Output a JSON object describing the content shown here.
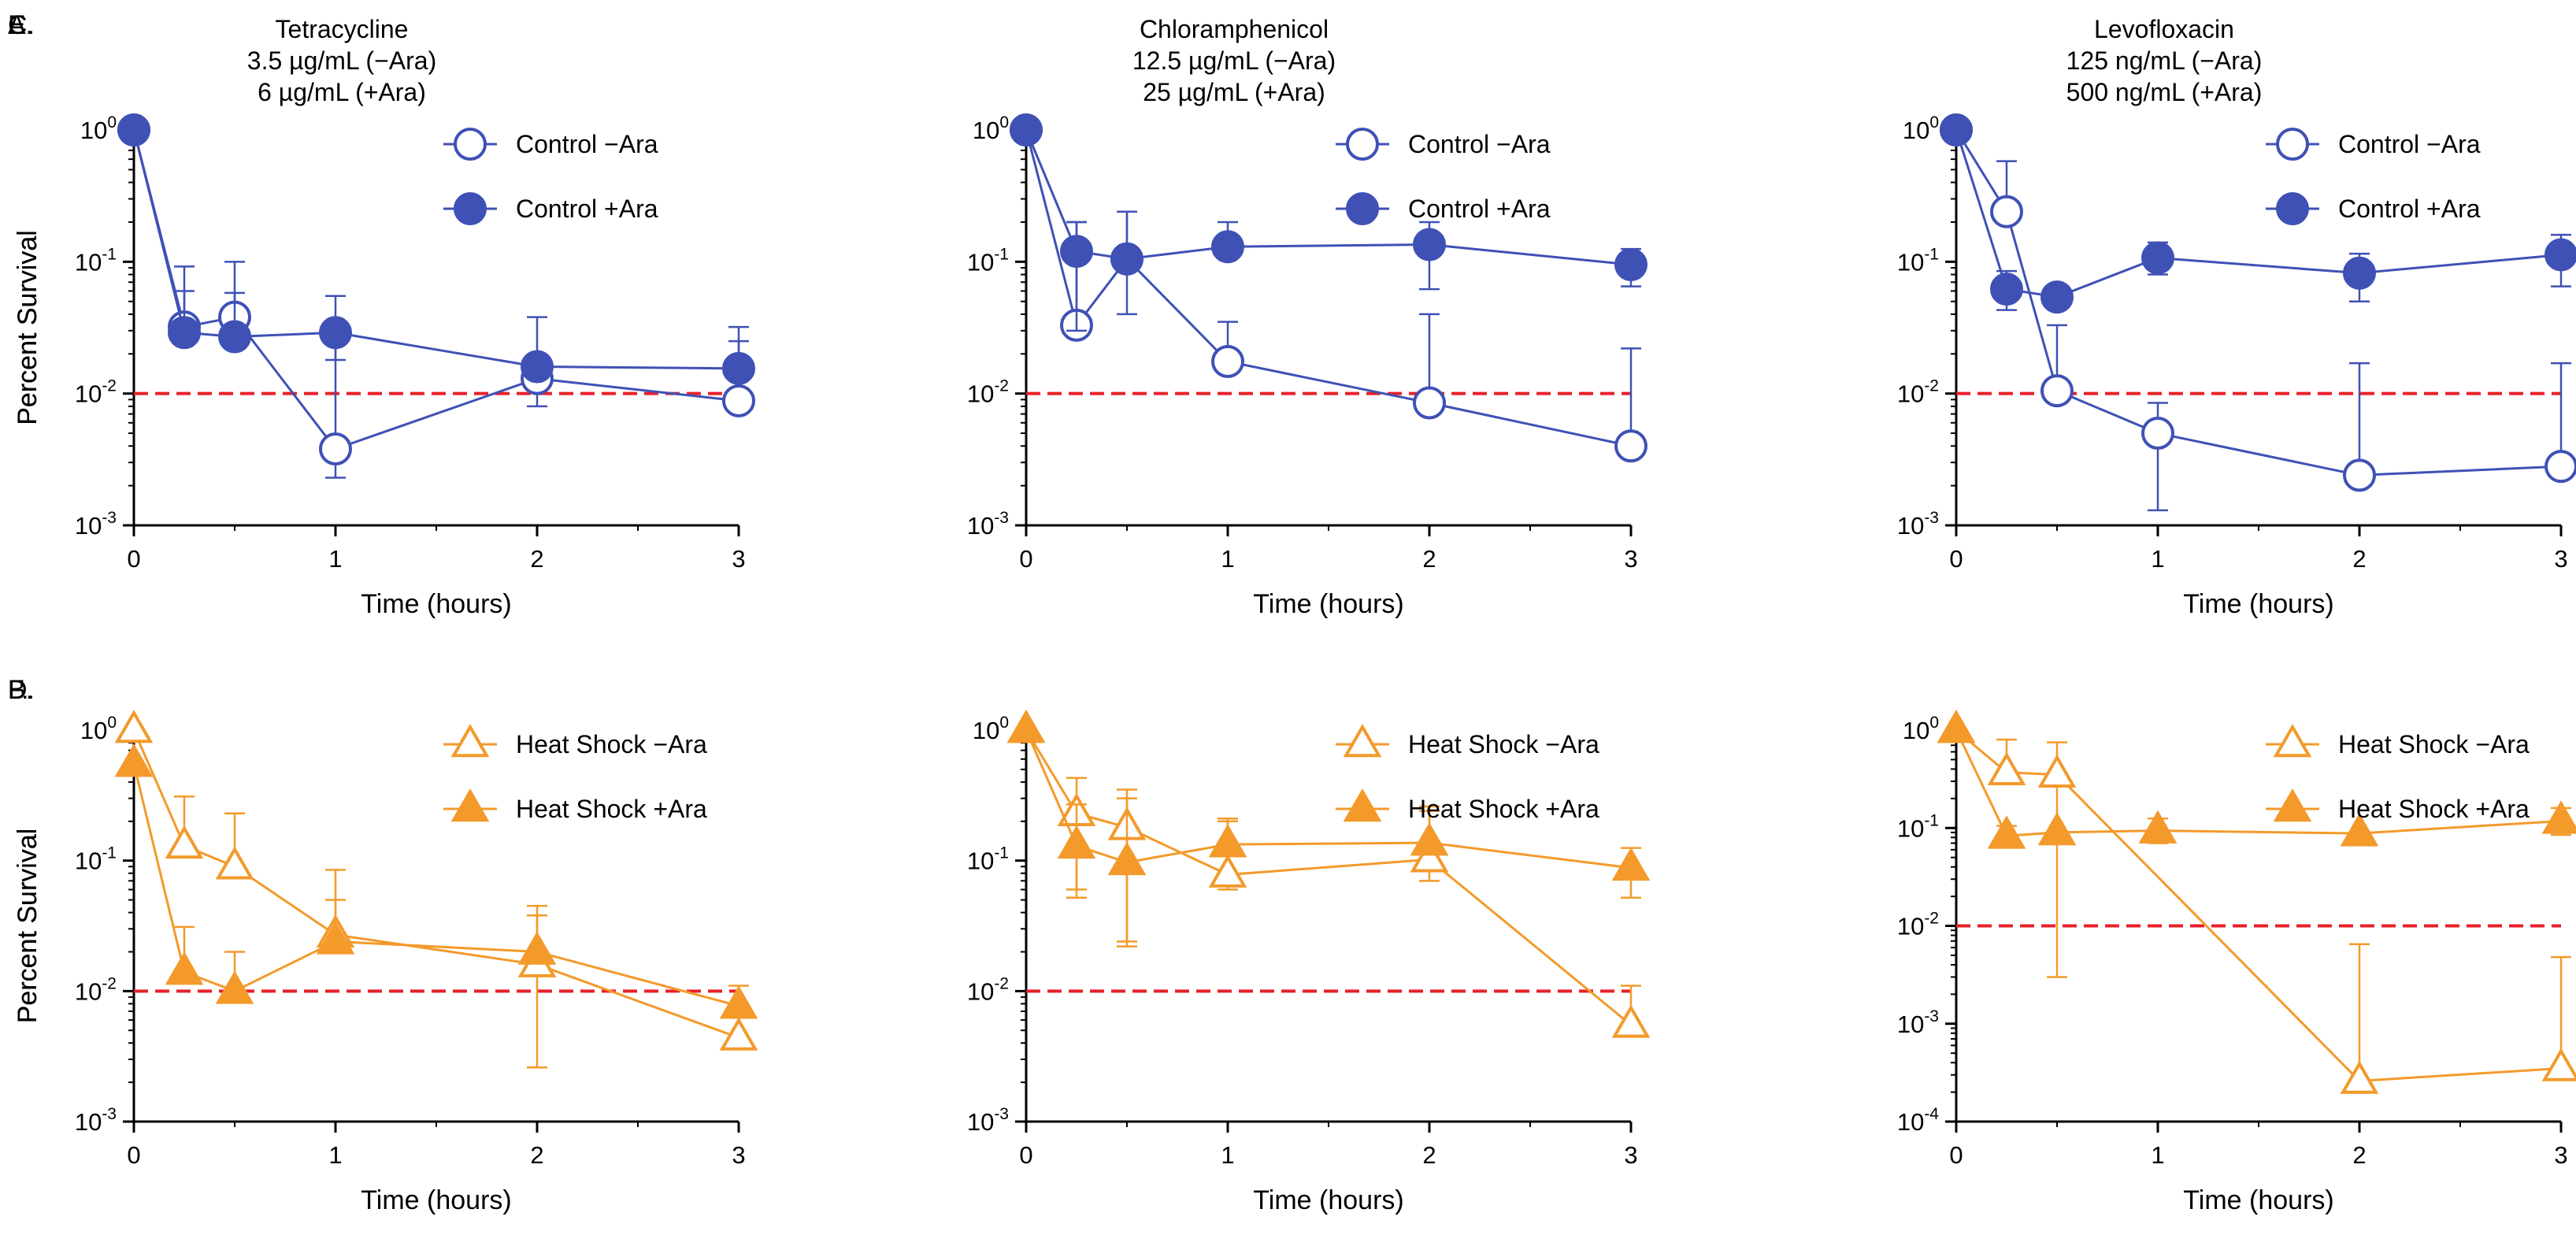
{
  "colors": {
    "control": "#3f51b5",
    "heat": "#f39a2b",
    "threshold": "#e8202a"
  },
  "chart_data": [
    {
      "panel": "A",
      "label": "A.",
      "type": "line",
      "title_lines": [
        "Tetracycline",
        "3.5 µg/mL (−Ara)",
        "6 µg/mL (+Ara)"
      ],
      "xlabel": "Time (hours)",
      "ylabel": "Percent Survival",
      "x_ticks": [
        "0",
        "1",
        "2",
        "3"
      ],
      "xlim": [
        0,
        3
      ],
      "ylim_log10": [
        -3,
        0
      ],
      "y_ticks": [
        {
          "base": "10",
          "exp": "0"
        },
        {
          "base": "10",
          "exp": "-1"
        },
        {
          "base": "10",
          "exp": "-2"
        },
        {
          "base": "10",
          "exp": "-3"
        }
      ],
      "threshold": 0.01,
      "legend_position": "top-right",
      "series": [
        {
          "name": "Control −Ara",
          "marker": "circle",
          "filled": false,
          "color_key": "control",
          "x": [
            0,
            0.25,
            0.5,
            1,
            2,
            3
          ],
          "y": [
            1.0,
            0.032,
            0.038,
            0.0038,
            0.013,
            0.0088
          ],
          "err_hi": [
            null,
            0.092,
            0.1,
            0.055,
            0.038,
            0.032
          ],
          "err_lo": [
            null,
            null,
            null,
            0.0023,
            0.008,
            null
          ]
        },
        {
          "name": "Control +Ara",
          "marker": "circle",
          "filled": true,
          "color_key": "control",
          "x": [
            0,
            0.25,
            0.5,
            1,
            2,
            3
          ],
          "y": [
            1.0,
            0.029,
            0.027,
            0.029,
            0.016,
            0.0155
          ],
          "err_hi": [
            null,
            0.06,
            0.058,
            null,
            0.018,
            0.025
          ],
          "err_lo": [
            null,
            null,
            null,
            0.018,
            null,
            null
          ]
        }
      ]
    },
    {
      "panel": "C",
      "label": "C.",
      "type": "line",
      "title_lines": [
        "Chloramphenicol",
        "12.5 µg/mL (−Ara)",
        "25 µg/mL (+Ara)"
      ],
      "xlabel": "Time (hours)",
      "ylabel": "Percent Survival",
      "x_ticks": [
        "0",
        "1",
        "2",
        "3"
      ],
      "xlim": [
        0,
        3
      ],
      "ylim_log10": [
        -3,
        0
      ],
      "y_ticks": [
        {
          "base": "10",
          "exp": "0"
        },
        {
          "base": "10",
          "exp": "-1"
        },
        {
          "base": "10",
          "exp": "-2"
        },
        {
          "base": "10",
          "exp": "-3"
        }
      ],
      "threshold": 0.01,
      "legend_position": "top-right",
      "series": [
        {
          "name": "Control −Ara",
          "marker": "circle",
          "filled": false,
          "color_key": "control",
          "x": [
            0,
            0.25,
            0.5,
            1,
            2,
            3
          ],
          "y": [
            1.0,
            0.033,
            0.105,
            0.0175,
            0.0085,
            0.004
          ],
          "err_hi": [
            null,
            0.2,
            0.24,
            0.035,
            0.04,
            0.022
          ],
          "err_lo": [
            null,
            null,
            null,
            null,
            null,
            null
          ]
        },
        {
          "name": "Control +Ara",
          "marker": "circle",
          "filled": true,
          "color_key": "control",
          "x": [
            0,
            0.25,
            0.5,
            1,
            2,
            3
          ],
          "y": [
            1.0,
            0.12,
            0.105,
            0.13,
            0.135,
            0.095
          ],
          "err_hi": [
            null,
            0.2,
            0.24,
            0.2,
            0.2,
            0.125
          ],
          "err_lo": [
            null,
            0.03,
            0.04,
            null,
            0.062,
            0.065
          ]
        }
      ]
    },
    {
      "panel": "E",
      "label": "E.",
      "type": "line",
      "title_lines": [
        "Levofloxacin",
        "125 ng/mL (−Ara)",
        "500 ng/mL (+Ara)"
      ],
      "xlabel": "Time (hours)",
      "ylabel": "Percent Survival",
      "x_ticks": [
        "0",
        "1",
        "2",
        "3"
      ],
      "xlim": [
        0,
        3
      ],
      "ylim_log10": [
        -3,
        0
      ],
      "y_ticks": [
        {
          "base": "10",
          "exp": "0"
        },
        {
          "base": "10",
          "exp": "-1"
        },
        {
          "base": "10",
          "exp": "-2"
        },
        {
          "base": "10",
          "exp": "-3"
        }
      ],
      "threshold": 0.01,
      "legend_position": "top-right",
      "series": [
        {
          "name": "Control −Ara",
          "marker": "circle",
          "filled": false,
          "color_key": "control",
          "x": [
            0,
            0.25,
            0.5,
            1,
            2,
            3
          ],
          "y": [
            1.0,
            0.24,
            0.0105,
            0.005,
            0.0024,
            0.0028
          ],
          "err_hi": [
            null,
            0.58,
            0.033,
            0.0085,
            0.017,
            0.017
          ],
          "err_lo": [
            null,
            null,
            null,
            0.0013,
            null,
            null
          ]
        },
        {
          "name": "Control +Ara",
          "marker": "circle",
          "filled": true,
          "color_key": "control",
          "x": [
            0,
            0.25,
            0.5,
            1,
            2,
            3
          ],
          "y": [
            1.0,
            0.062,
            0.054,
            0.107,
            0.082,
            0.113
          ],
          "err_hi": [
            null,
            0.085,
            null,
            0.14,
            0.115,
            0.16
          ],
          "err_lo": [
            null,
            0.043,
            null,
            0.08,
            0.05,
            0.065
          ]
        }
      ]
    },
    {
      "panel": "B",
      "label": "B.",
      "type": "line",
      "title_lines": [],
      "xlabel": "Time (hours)",
      "ylabel": "Percent Survival",
      "x_ticks": [
        "0",
        "1",
        "2",
        "3"
      ],
      "xlim": [
        0,
        3
      ],
      "ylim_log10": [
        -3,
        0
      ],
      "y_ticks": [
        {
          "base": "10",
          "exp": "0"
        },
        {
          "base": "10",
          "exp": "-1"
        },
        {
          "base": "10",
          "exp": "-2"
        },
        {
          "base": "10",
          "exp": "-3"
        }
      ],
      "threshold": 0.01,
      "legend_position": "top-right",
      "series": [
        {
          "name": "Heat Shock −Ara",
          "marker": "triangle",
          "filled": false,
          "color_key": "heat",
          "x": [
            0,
            0.25,
            0.5,
            1,
            2,
            3
          ],
          "y": [
            1.0,
            0.13,
            0.09,
            0.027,
            0.016,
            0.0044
          ],
          "err_hi": [
            null,
            0.31,
            0.23,
            0.085,
            0.045,
            null
          ],
          "err_lo": [
            null,
            null,
            null,
            null,
            0.0026,
            null
          ]
        },
        {
          "name": "Heat Shock +Ara",
          "marker": "triangle",
          "filled": true,
          "color_key": "heat",
          "x": [
            0,
            0.25,
            0.5,
            1,
            2,
            3
          ],
          "y": [
            0.55,
            0.014,
            0.01,
            0.024,
            0.02,
            0.0077
          ],
          "err_hi": [
            null,
            0.031,
            0.02,
            0.05,
            0.038,
            0.011
          ],
          "err_lo": [
            null,
            null,
            null,
            null,
            null,
            null
          ]
        }
      ]
    },
    {
      "panel": "D",
      "label": "D.",
      "type": "line",
      "title_lines": [],
      "xlabel": "Time (hours)",
      "ylabel": "Percent Survival",
      "x_ticks": [
        "0",
        "1",
        "2",
        "3"
      ],
      "xlim": [
        0,
        3
      ],
      "ylim_log10": [
        -3,
        0
      ],
      "y_ticks": [
        {
          "base": "10",
          "exp": "0"
        },
        {
          "base": "10",
          "exp": "-1"
        },
        {
          "base": "10",
          "exp": "-2"
        },
        {
          "base": "10",
          "exp": "-3"
        }
      ],
      "threshold": 0.01,
      "legend_position": "top-right",
      "series": [
        {
          "name": "Heat Shock −Ara",
          "marker": "triangle",
          "filled": false,
          "color_key": "heat",
          "x": [
            0,
            0.25,
            0.5,
            1,
            2,
            3
          ],
          "y": [
            1.0,
            0.23,
            0.18,
            0.078,
            0.102,
            0.0055
          ],
          "err_hi": [
            null,
            0.43,
            0.35,
            0.2,
            0.24,
            0.011
          ],
          "err_lo": [
            null,
            0.06,
            0.024,
            0.06,
            0.07,
            null
          ]
        },
        {
          "name": "Heat Shock +Ara",
          "marker": "triangle",
          "filled": true,
          "color_key": "heat",
          "x": [
            0,
            0.25,
            0.5,
            1,
            2,
            3
          ],
          "y": [
            1.0,
            0.13,
            0.097,
            0.133,
            0.137,
            0.088
          ],
          "err_hi": [
            null,
            0.27,
            0.3,
            0.21,
            0.26,
            0.125
          ],
          "err_lo": [
            null,
            0.052,
            0.022,
            null,
            null,
            0.052
          ]
        }
      ]
    },
    {
      "panel": "F",
      "label": "F.",
      "type": "line",
      "title_lines": [],
      "xlabel": "Time (hours)",
      "ylabel": "Percent Survival",
      "x_ticks": [
        "0",
        "1",
        "2",
        "3"
      ],
      "xlim": [
        0,
        3
      ],
      "ylim_log10": [
        -4,
        0
      ],
      "y_ticks": [
        {
          "base": "10",
          "exp": "0"
        },
        {
          "base": "10",
          "exp": "-1"
        },
        {
          "base": "10",
          "exp": "-2"
        },
        {
          "base": "10",
          "exp": "-3"
        },
        {
          "base": "10",
          "exp": "-4"
        }
      ],
      "threshold": 0.01,
      "legend_position": "top-right",
      "series": [
        {
          "name": "Heat Shock −Ara",
          "marker": "triangle",
          "filled": false,
          "color_key": "heat",
          "x": [
            0,
            0.25,
            0.5,
            1,
            2,
            3
          ],
          "y": [
            1.0,
            0.37,
            0.35,
            null,
            0.00026,
            0.00035
          ],
          "err_hi": [
            null,
            0.8,
            0.75,
            null,
            0.0065,
            0.0048
          ],
          "err_lo": [
            null,
            null,
            0.003,
            null,
            null,
            null
          ]
        },
        {
          "name": "Heat Shock +Ara",
          "marker": "triangle",
          "filled": true,
          "color_key": "heat",
          "x": [
            0,
            0.25,
            0.5,
            1,
            2,
            3
          ],
          "y": [
            1.0,
            0.083,
            0.09,
            0.094,
            0.088,
            0.118
          ],
          "err_hi": [
            null,
            0.105,
            null,
            0.125,
            null,
            0.16
          ],
          "err_lo": [
            null,
            0.065,
            null,
            0.07,
            null,
            0.085
          ]
        }
      ]
    }
  ]
}
